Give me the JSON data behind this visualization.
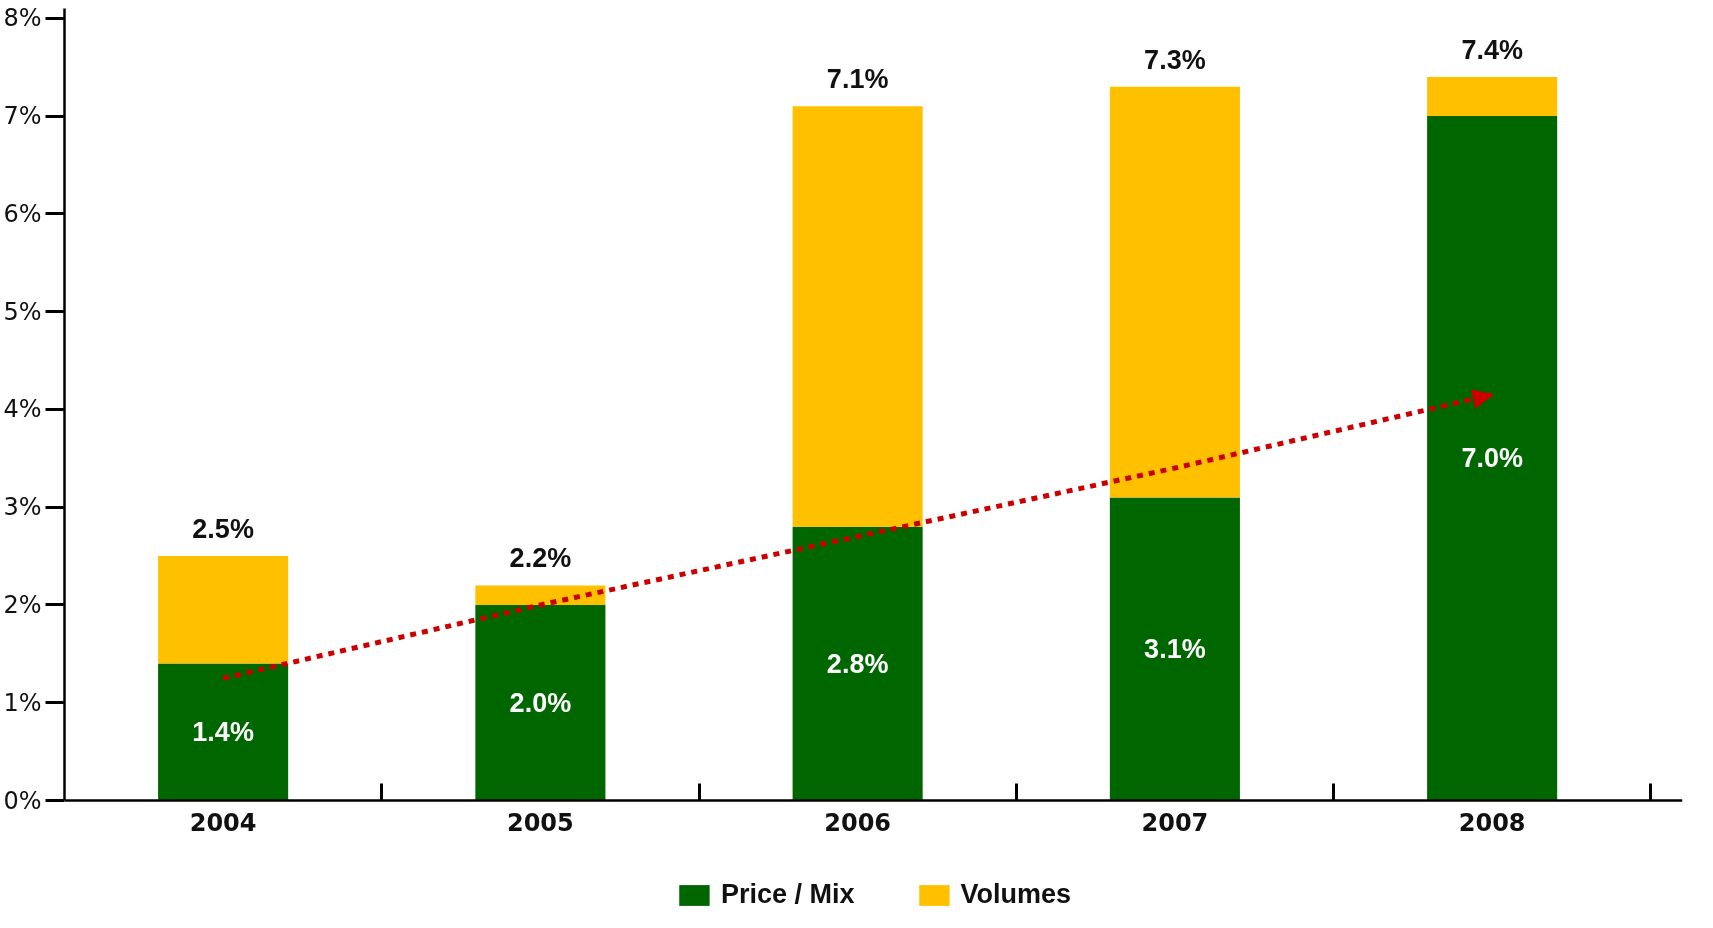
{
  "chart_data": {
    "type": "bar",
    "stacked": true,
    "categories": [
      "2004",
      "2005",
      "2006",
      "2007",
      "2008"
    ],
    "series": [
      {
        "name": "Price / Mix",
        "color": "#006600",
        "values": [
          1.4,
          2.0,
          2.8,
          3.1,
          7.0
        ],
        "value_labels": [
          "1.4%",
          "2.0%",
          "2.8%",
          "3.1%",
          "7.0%"
        ]
      },
      {
        "name": "Volumes",
        "color": "#ffc000",
        "values": [
          1.1,
          0.2,
          4.3,
          4.2,
          0.4
        ]
      },
      {
        "type": "line",
        "color": "#cc0000",
        "line_style": "dotted",
        "values": [
          1.25,
          2.0,
          2.7,
          3.4,
          4.15
        ]
      }
    ],
    "totals": [
      "2.5%",
      "2.2%",
      "7.1%",
      "7.3%",
      "7.4%"
    ],
    "ylim": [
      0,
      8.1
    ],
    "yticks": [
      {
        "value": 0,
        "label": "0%"
      },
      {
        "value": 1,
        "label": "1%"
      },
      {
        "value": 2,
        "label": "2%"
      },
      {
        "value": 3,
        "label": "3%"
      },
      {
        "value": 4,
        "label": "4%"
      },
      {
        "value": 5,
        "label": "5%"
      },
      {
        "value": 6,
        "label": "6%"
      },
      {
        "value": 7,
        "label": "7%"
      },
      {
        "value": 8,
        "label": "8%"
      }
    ],
    "grid": false,
    "legend": "bottom"
  }
}
